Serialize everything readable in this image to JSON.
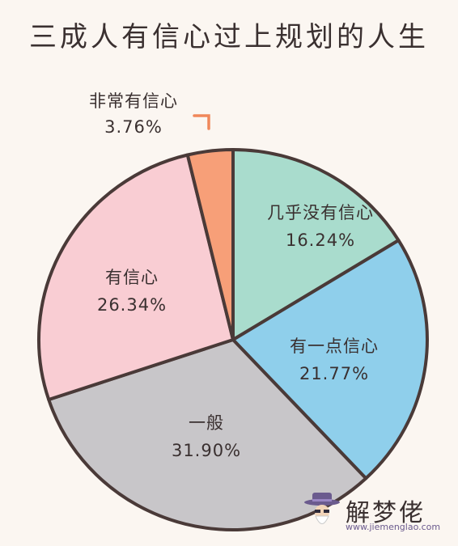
{
  "title": "三成人有信心过上规划的人生",
  "chart_data": {
    "type": "pie",
    "title": "三成人有信心过上规划的人生",
    "slices": [
      {
        "label": "几乎没有信心",
        "value": 16.24,
        "display": "16.24%",
        "color": "#a9dccd"
      },
      {
        "label": "有一点信心",
        "value": 21.77,
        "display": "21.77%",
        "color": "#8fcfeb"
      },
      {
        "label": "一般",
        "value": 31.9,
        "display": "31.90%",
        "color": "#c8c6c9"
      },
      {
        "label": "有信心",
        "value": 26.34,
        "display": "26.34%",
        "color": "#f9cdd3"
      },
      {
        "label": "非常有信心",
        "value": 3.76,
        "display": "3.76%",
        "color": "#f79f78"
      }
    ],
    "start_angle": "12 o'clock",
    "direction": "clockwise",
    "outline_color": "#4a3a38",
    "callout_color": "#f0875a"
  },
  "watermark": {
    "name": "解梦佬",
    "url": "www.jiemenglao.com",
    "icon": "fortune-teller-icon"
  }
}
